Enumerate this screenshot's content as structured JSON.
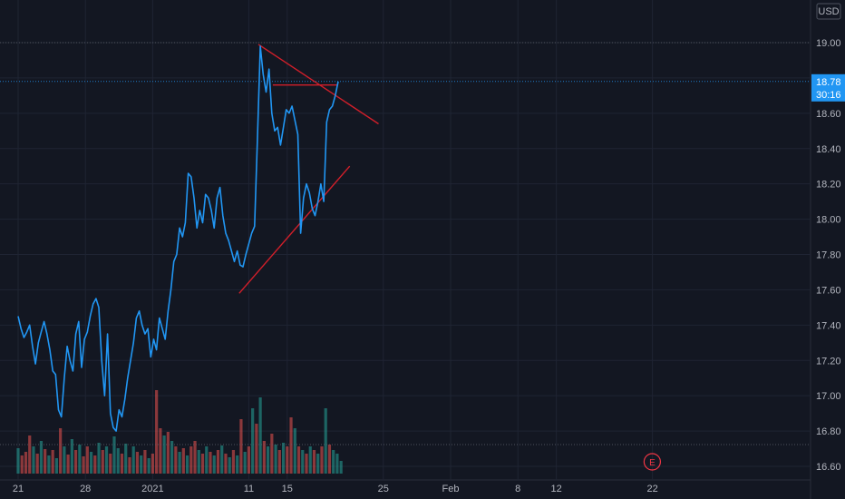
{
  "currency": "USD",
  "price_badge": {
    "price": "18.78",
    "countdown": "30:16",
    "color": "#2196f3"
  },
  "earnings_marker": {
    "label": "E",
    "color": "#f23645",
    "date_index": 54
  },
  "colors": {
    "background": "#131722",
    "grid": "#1f2433",
    "price_line": "#2196f3",
    "trendline": "#d21f2a",
    "volume_up": "#26a69a",
    "volume_down": "#ef5350",
    "axis_text": "#b2b5be"
  },
  "chart_data": {
    "type": "line",
    "title": "",
    "xlabel": "",
    "ylabel": "",
    "ylim": [
      16.55,
      19.2
    ],
    "y_ticks": [
      "19.00",
      "18.80",
      "18.60",
      "18.40",
      "18.20",
      "18.00",
      "17.80",
      "17.60",
      "17.40",
      "17.20",
      "17.00",
      "16.80",
      "16.60"
    ],
    "y_top_partial": "19.20",
    "x_ticks": [
      {
        "label": "21",
        "day": 0
      },
      {
        "label": "28",
        "day": 7
      },
      {
        "label": "2021",
        "day": 14
      },
      {
        "label": "11",
        "day": 24
      },
      {
        "label": "15",
        "day": 28
      },
      {
        "label": "25",
        "day": 38
      },
      {
        "label": "Feb",
        "day": 45
      },
      {
        "label": "8",
        "day": 52
      },
      {
        "label": "12",
        "day": 56
      },
      {
        "label": "22",
        "day": 66
      }
    ],
    "price_series": [
      [
        0.0,
        17.45
      ],
      [
        0.3,
        17.38
      ],
      [
        0.6,
        17.33
      ],
      [
        0.9,
        17.36
      ],
      [
        1.2,
        17.4
      ],
      [
        1.5,
        17.28
      ],
      [
        1.8,
        17.18
      ],
      [
        2.1,
        17.3
      ],
      [
        2.4,
        17.36
      ],
      [
        2.7,
        17.42
      ],
      [
        3.0,
        17.35
      ],
      [
        3.3,
        17.26
      ],
      [
        3.6,
        17.14
      ],
      [
        3.9,
        17.12
      ],
      [
        4.2,
        16.92
      ],
      [
        4.5,
        16.88
      ],
      [
        4.8,
        17.1
      ],
      [
        5.1,
        17.28
      ],
      [
        5.4,
        17.2
      ],
      [
        5.7,
        17.14
      ],
      [
        6.0,
        17.35
      ],
      [
        6.3,
        17.42
      ],
      [
        6.6,
        17.16
      ],
      [
        6.9,
        17.32
      ],
      [
        7.2,
        17.36
      ],
      [
        7.5,
        17.45
      ],
      [
        7.8,
        17.52
      ],
      [
        8.1,
        17.55
      ],
      [
        8.4,
        17.5
      ],
      [
        8.7,
        17.2
      ],
      [
        9.0,
        17.0
      ],
      [
        9.3,
        17.35
      ],
      [
        9.6,
        16.9
      ],
      [
        9.9,
        16.82
      ],
      [
        10.2,
        16.8
      ],
      [
        10.5,
        16.92
      ],
      [
        10.8,
        16.88
      ],
      [
        11.1,
        16.98
      ],
      [
        11.4,
        17.1
      ],
      [
        11.7,
        17.2
      ],
      [
        12.0,
        17.3
      ],
      [
        12.3,
        17.44
      ],
      [
        12.6,
        17.48
      ],
      [
        12.9,
        17.4
      ],
      [
        13.2,
        17.35
      ],
      [
        13.5,
        17.38
      ],
      [
        13.8,
        17.22
      ],
      [
        14.1,
        17.32
      ],
      [
        14.4,
        17.26
      ],
      [
        14.7,
        17.44
      ],
      [
        15.0,
        17.38
      ],
      [
        15.3,
        17.32
      ],
      [
        15.6,
        17.48
      ],
      [
        15.9,
        17.6
      ],
      [
        16.2,
        17.76
      ],
      [
        16.5,
        17.8
      ],
      [
        16.8,
        17.95
      ],
      [
        17.1,
        17.9
      ],
      [
        17.4,
        17.98
      ],
      [
        17.7,
        18.26
      ],
      [
        18.0,
        18.24
      ],
      [
        18.3,
        18.12
      ],
      [
        18.6,
        17.95
      ],
      [
        18.9,
        18.05
      ],
      [
        19.2,
        17.98
      ],
      [
        19.5,
        18.14
      ],
      [
        19.8,
        18.12
      ],
      [
        20.1,
        18.05
      ],
      [
        20.4,
        17.95
      ],
      [
        20.7,
        18.12
      ],
      [
        21.0,
        18.18
      ],
      [
        21.3,
        18.02
      ],
      [
        21.6,
        17.92
      ],
      [
        21.9,
        17.88
      ],
      [
        22.2,
        17.82
      ],
      [
        22.5,
        17.76
      ],
      [
        22.8,
        17.82
      ],
      [
        23.1,
        17.74
      ],
      [
        23.4,
        17.73
      ],
      [
        23.7,
        17.8
      ],
      [
        24.0,
        17.86
      ],
      [
        24.3,
        17.92
      ],
      [
        24.6,
        17.96
      ],
      [
        24.9,
        18.45
      ],
      [
        25.2,
        18.98
      ],
      [
        25.5,
        18.82
      ],
      [
        25.8,
        18.72
      ],
      [
        26.1,
        18.85
      ],
      [
        26.4,
        18.6
      ],
      [
        26.7,
        18.5
      ],
      [
        27.0,
        18.52
      ],
      [
        27.3,
        18.42
      ],
      [
        27.6,
        18.52
      ],
      [
        27.9,
        18.62
      ],
      [
        28.2,
        18.6
      ],
      [
        28.5,
        18.64
      ],
      [
        28.8,
        18.56
      ],
      [
        29.1,
        18.48
      ],
      [
        29.4,
        17.92
      ],
      [
        29.7,
        18.12
      ],
      [
        30.0,
        18.2
      ],
      [
        30.3,
        18.15
      ],
      [
        30.6,
        18.06
      ],
      [
        30.9,
        18.02
      ],
      [
        31.2,
        18.1
      ],
      [
        31.5,
        18.2
      ],
      [
        31.8,
        18.1
      ],
      [
        32.1,
        18.55
      ],
      [
        32.4,
        18.62
      ],
      [
        32.7,
        18.64
      ],
      [
        33.0,
        18.7
      ],
      [
        33.3,
        18.78
      ]
    ],
    "trendlines": [
      {
        "from": [
          25.0,
          18.99
        ],
        "to": [
          37.5,
          18.54
        ]
      },
      {
        "from": [
          23.0,
          17.58
        ],
        "to": [
          34.5,
          18.3
        ]
      },
      {
        "from": [
          26.5,
          18.76
        ],
        "to": [
          33.3,
          18.76
        ]
      }
    ],
    "volume_bars": [
      [
        0.0,
        0.28,
        1
      ],
      [
        0.4,
        0.2,
        0
      ],
      [
        0.8,
        0.24,
        0
      ],
      [
        1.2,
        0.42,
        0
      ],
      [
        1.6,
        0.3,
        1
      ],
      [
        2.0,
        0.22,
        0
      ],
      [
        2.4,
        0.36,
        1
      ],
      [
        2.8,
        0.27,
        0
      ],
      [
        3.2,
        0.2,
        1
      ],
      [
        3.6,
        0.26,
        0
      ],
      [
        4.0,
        0.17,
        1
      ],
      [
        4.4,
        0.5,
        0
      ],
      [
        4.8,
        0.3,
        1
      ],
      [
        5.2,
        0.21,
        0
      ],
      [
        5.6,
        0.38,
        1
      ],
      [
        6.0,
        0.26,
        0
      ],
      [
        6.4,
        0.32,
        1
      ],
      [
        6.8,
        0.19,
        0
      ],
      [
        7.2,
        0.3,
        0
      ],
      [
        7.6,
        0.24,
        1
      ],
      [
        8.0,
        0.2,
        0
      ],
      [
        8.4,
        0.34,
        1
      ],
      [
        8.8,
        0.26,
        0
      ],
      [
        9.2,
        0.3,
        1
      ],
      [
        9.6,
        0.22,
        0
      ],
      [
        10.0,
        0.41,
        1
      ],
      [
        10.4,
        0.28,
        1
      ],
      [
        10.8,
        0.22,
        0
      ],
      [
        11.2,
        0.33,
        1
      ],
      [
        11.6,
        0.18,
        0
      ],
      [
        12.0,
        0.3,
        1
      ],
      [
        12.4,
        0.24,
        0
      ],
      [
        12.8,
        0.2,
        1
      ],
      [
        13.2,
        0.26,
        0
      ],
      [
        13.6,
        0.17,
        1
      ],
      [
        14.0,
        0.22,
        0
      ],
      [
        14.4,
        0.92,
        0
      ],
      [
        14.8,
        0.5,
        0
      ],
      [
        15.2,
        0.42,
        1
      ],
      [
        15.6,
        0.46,
        0
      ],
      [
        16.0,
        0.36,
        1
      ],
      [
        16.4,
        0.3,
        0
      ],
      [
        16.8,
        0.24,
        1
      ],
      [
        17.2,
        0.28,
        0
      ],
      [
        17.6,
        0.2,
        1
      ],
      [
        18.0,
        0.3,
        0
      ],
      [
        18.4,
        0.36,
        0
      ],
      [
        18.8,
        0.26,
        1
      ],
      [
        19.2,
        0.22,
        0
      ],
      [
        19.6,
        0.3,
        1
      ],
      [
        20.0,
        0.24,
        0
      ],
      [
        20.4,
        0.2,
        1
      ],
      [
        20.8,
        0.26,
        0
      ],
      [
        21.2,
        0.31,
        1
      ],
      [
        21.6,
        0.22,
        0
      ],
      [
        22.0,
        0.18,
        1
      ],
      [
        22.4,
        0.26,
        0
      ],
      [
        22.8,
        0.2,
        1
      ],
      [
        23.2,
        0.6,
        0
      ],
      [
        23.6,
        0.24,
        1
      ],
      [
        24.0,
        0.3,
        0
      ],
      [
        24.4,
        0.72,
        1
      ],
      [
        24.8,
        0.55,
        0
      ],
      [
        25.2,
        0.84,
        1
      ],
      [
        25.6,
        0.36,
        0
      ],
      [
        26.0,
        0.3,
        1
      ],
      [
        26.4,
        0.44,
        0
      ],
      [
        26.8,
        0.32,
        1
      ],
      [
        27.2,
        0.26,
        0
      ],
      [
        27.6,
        0.34,
        1
      ],
      [
        28.0,
        0.3,
        0
      ],
      [
        28.4,
        0.62,
        0
      ],
      [
        28.8,
        0.5,
        1
      ],
      [
        29.2,
        0.3,
        0
      ],
      [
        29.6,
        0.26,
        1
      ],
      [
        30.0,
        0.22,
        0
      ],
      [
        30.4,
        0.3,
        1
      ],
      [
        30.8,
        0.26,
        0
      ],
      [
        31.2,
        0.22,
        1
      ],
      [
        31.6,
        0.3,
        0
      ],
      [
        32.0,
        0.72,
        1
      ],
      [
        32.4,
        0.32,
        0
      ],
      [
        32.8,
        0.26,
        1
      ],
      [
        33.2,
        0.22,
        1
      ],
      [
        33.6,
        0.14,
        1
      ]
    ]
  }
}
